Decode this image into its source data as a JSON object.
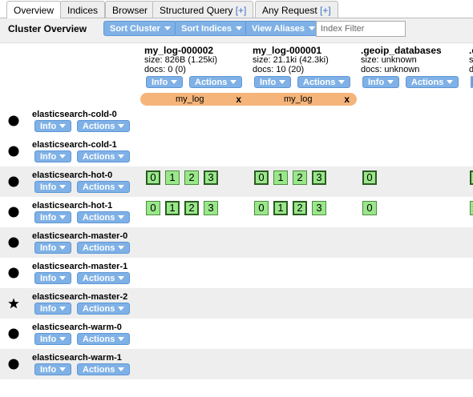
{
  "tabs": [
    {
      "label": "Overview",
      "plus": ""
    },
    {
      "label": "Indices",
      "plus": ""
    },
    {
      "label": "Browser",
      "plus": ""
    },
    {
      "label": "Structured Query",
      "plus": "[+]"
    },
    {
      "label": "Any Request",
      "plus": "[+]"
    }
  ],
  "toolbar": {
    "title": "Cluster Overview",
    "sort_cluster": "Sort Cluster",
    "sort_indices": "Sort Indices",
    "view_aliases": "View Aliases",
    "filter_placeholder": "Index Filter"
  },
  "buttons": {
    "info": "Info",
    "actions": "Actions"
  },
  "indices": [
    {
      "name": "my_log-000002",
      "size": "size: 826B (1.25ki)",
      "docs": "docs: 0 (0)"
    },
    {
      "name": "my_log-000001",
      "size": "size: 21.1ki (42.3ki)",
      "docs": "docs: 10 (20)"
    },
    {
      "name": ".geoip_databases",
      "size": "size: unknown",
      "docs": "docs: unknown"
    },
    {
      "name": ".d",
      "size": "s",
      "docs": "d"
    }
  ],
  "aliases": [
    {
      "name": "my_log",
      "remove": "x"
    },
    {
      "name": "my_log",
      "remove": "x"
    }
  ],
  "nodes": [
    {
      "name": "elasticsearch-cold-0",
      "icon": "filled-circle-icon"
    },
    {
      "name": "elasticsearch-cold-1",
      "icon": "filled-circle-icon"
    },
    {
      "name": "elasticsearch-hot-0",
      "icon": "filled-circle-icon"
    },
    {
      "name": "elasticsearch-hot-1",
      "icon": "filled-circle-icon"
    },
    {
      "name": "elasticsearch-master-0",
      "icon": "filled-circle-icon"
    },
    {
      "name": "elasticsearch-master-1",
      "icon": "filled-circle-icon"
    },
    {
      "name": "elasticsearch-master-2",
      "icon": "star-icon"
    },
    {
      "name": "elasticsearch-warm-0",
      "icon": "filled-circle-icon"
    },
    {
      "name": "elasticsearch-warm-1",
      "icon": "filled-circle-icon"
    }
  ],
  "shards": {
    "hot0": {
      "idx1": [
        "0",
        "1",
        "2",
        "3"
      ],
      "idx2": [
        "0",
        "1",
        "2",
        "3"
      ],
      "idx3": [
        "0"
      ]
    },
    "hot1": {
      "idx1": [
        "0",
        "1",
        "2",
        "3"
      ],
      "idx2": [
        "0",
        "1",
        "2",
        "3"
      ],
      "idx3": [
        "0"
      ]
    }
  },
  "colors": {
    "button": "#7fb1e6",
    "alias": "#f5b47a",
    "shard": "#99e78a"
  }
}
